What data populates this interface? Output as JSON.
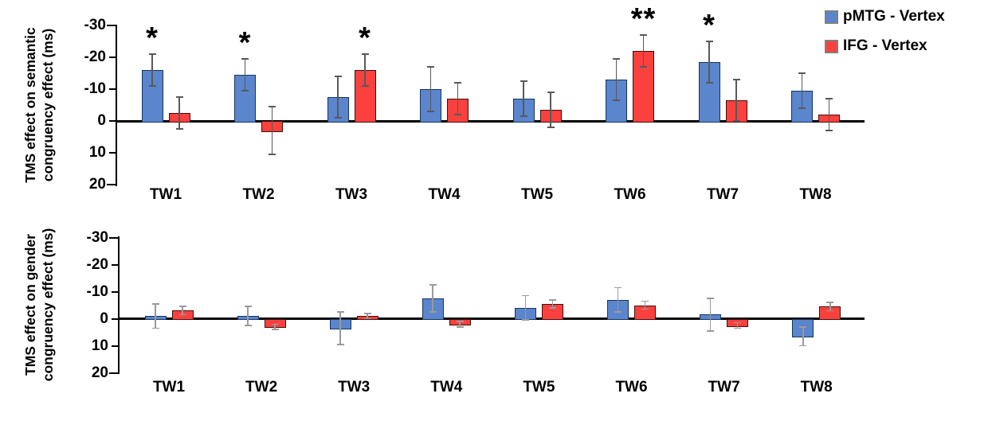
{
  "figure": {
    "background": "#ffffff",
    "axis_color": "#000000"
  },
  "legend": {
    "position": "top-right",
    "swatch_border_color": "#808080"
  },
  "chart_data": [
    {
      "type": "bar",
      "panel_id": "semantic",
      "ylabel": "TMS effect on semantic congruency effect (ms)",
      "ylabel_lines": [
        "TMS effect on semantic",
        "congruency effect (ms)"
      ],
      "xlabel": "",
      "yticks": [
        -30,
        -20,
        -10,
        0,
        10,
        20
      ],
      "ylim": [
        -30,
        20
      ],
      "y_axis_inverted": true,
      "grid": false,
      "error_bar_color": "#595959",
      "categories": [
        "TW1",
        "TW2",
        "TW3",
        "TW4",
        "TW5",
        "TW6",
        "TW7",
        "TW8"
      ],
      "series": [
        {
          "name": "pMTG - Vertex",
          "color": "#5B85CC",
          "border_color": "#16365C",
          "values": [
            -16,
            -14.5,
            -7.5,
            -10,
            -7,
            -13,
            -18.5,
            -9.5
          ],
          "errors": [
            5,
            5,
            6.5,
            7,
            5.5,
            6.5,
            6.5,
            5.5
          ]
        },
        {
          "name": "IFG - Vertex",
          "color": "#FA413E",
          "border_color": "#3F0F0E",
          "values": [
            -2.5,
            3,
            -16,
            -7,
            -3.5,
            -22,
            -6.5,
            -2
          ],
          "errors": [
            5,
            7.5,
            5,
            5,
            5.5,
            5,
            6.5,
            5
          ]
        }
      ],
      "significance": [
        {
          "category": "TW1",
          "series": "pMTG - Vertex",
          "marker": "*"
        },
        {
          "category": "TW2",
          "series": "pMTG - Vertex",
          "marker": "*"
        },
        {
          "category": "TW3",
          "series": "IFG - Vertex",
          "marker": "*"
        },
        {
          "category": "TW6",
          "series": "IFG - Vertex",
          "marker": "**"
        },
        {
          "category": "TW7",
          "series": "pMTG - Vertex",
          "marker": "*"
        }
      ]
    },
    {
      "type": "bar",
      "panel_id": "gender",
      "ylabel": "TMS  effect on gender congruency effect (ms)",
      "ylabel_lines": [
        "TMS  effect on gender",
        "congruency effect (ms)"
      ],
      "xlabel": "",
      "yticks": [
        -30,
        -20,
        -10,
        0,
        10,
        20
      ],
      "ylim": [
        -30,
        20
      ],
      "y_axis_inverted": true,
      "grid": false,
      "error_bar_color": "#9A9A9A",
      "categories": [
        "TW1",
        "TW2",
        "TW3",
        "TW4",
        "TW5",
        "TW6",
        "TW7",
        "TW8"
      ],
      "series": [
        {
          "name": "pMTG - Vertex",
          "color": "#5B85CC",
          "border_color": "#16365C",
          "values": [
            -1,
            -1,
            3.5,
            -7.5,
            -4,
            -7,
            -1.5,
            6.5
          ],
          "errors": [
            4.5,
            3.5,
            6,
            5,
            4.5,
            4.5,
            6,
            3.5
          ]
        },
        {
          "name": "IFG - Vertex",
          "color": "#FA413E",
          "border_color": "#3F0F0E",
          "values": [
            -3,
            3,
            -1,
            2,
            -5.5,
            -5,
            2.5,
            -4.5
          ],
          "errors": [
            1.5,
            1,
            1,
            1,
            1.5,
            1.5,
            1,
            1.5
          ]
        }
      ],
      "significance": []
    }
  ]
}
